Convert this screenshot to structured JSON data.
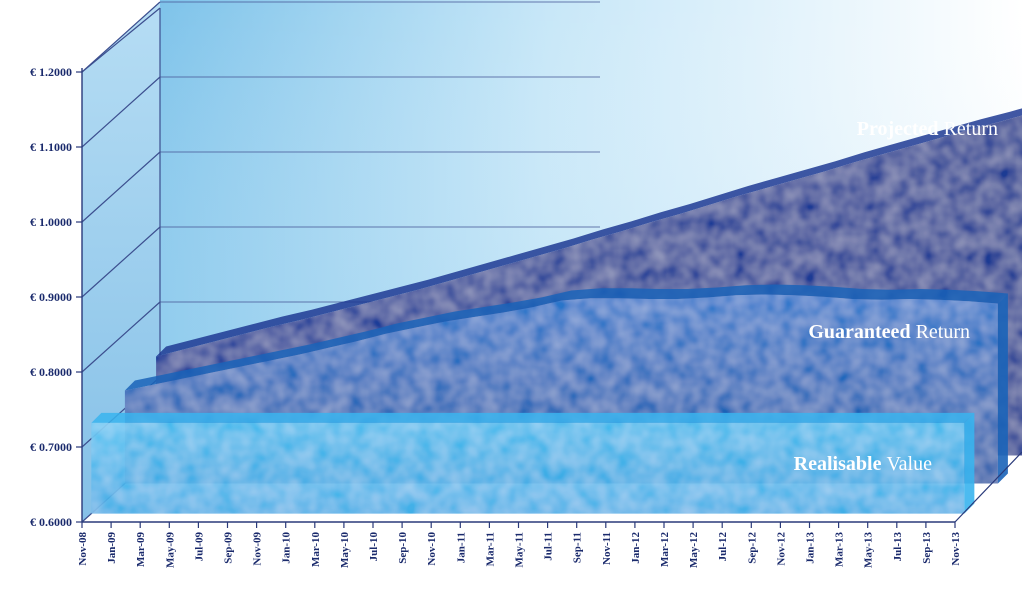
{
  "chart_data": {
    "type": "area",
    "yticks": [
      "€ 0.6000",
      "€ 0.7000",
      "€ 0.8000",
      "€ 0.9000",
      "€ 1.0000",
      "€ 1.1000",
      "€ 1.2000"
    ],
    "ylim": [
      0.6,
      1.2
    ],
    "x": [
      "Nov-08",
      "Jan-09",
      "Mar-09",
      "May-09",
      "Jul-09",
      "Sep-09",
      "Nov-09",
      "Jan-10",
      "Mar-10",
      "May-10",
      "Jul-10",
      "Sep-10",
      "Nov-10",
      "Jan-11",
      "Mar-11",
      "May-11",
      "Jul-11",
      "Sep-11",
      "Nov-11",
      "Jan-12",
      "Mar-12",
      "May-12",
      "Jul-12",
      "Sep-12",
      "Nov-12",
      "Jan-13",
      "Mar-13",
      "May-13",
      "Jul-13",
      "Sep-13",
      "Nov-13"
    ],
    "series": [
      {
        "name": "Projected Return",
        "label_bold": "Projected",
        "label_rest": " Return",
        "color": "#1f3a93",
        "values": [
          0.732,
          0.742,
          0.752,
          0.762,
          0.772,
          0.781,
          0.791,
          0.801,
          0.811,
          0.821,
          0.832,
          0.843,
          0.854,
          0.865,
          0.876,
          0.888,
          0.899,
          0.911,
          0.922,
          0.934,
          0.946,
          0.957,
          0.968,
          0.979,
          0.991,
          1.002,
          1.013,
          1.024,
          1.035,
          1.045,
          1.056
        ]
      },
      {
        "name": "Guaranteed Return",
        "label_bold": "Guaranteed",
        "label_rest": " Return",
        "color": "#1a63b8",
        "values": [
          0.724,
          0.732,
          0.74,
          0.748,
          0.756,
          0.764,
          0.772,
          0.781,
          0.79,
          0.8,
          0.808,
          0.816,
          0.822,
          0.828,
          0.835,
          0.844,
          0.847,
          0.847,
          0.846,
          0.846,
          0.848,
          0.851,
          0.852,
          0.851,
          0.849,
          0.846,
          0.845,
          0.846,
          0.845,
          0.843,
          0.84
        ]
      },
      {
        "name": "Realisable Value",
        "label_bold": "Realisable",
        "label_rest": " Value",
        "color": "#39b4ee",
        "values": [
          0.721,
          0.721,
          0.721,
          0.721,
          0.721,
          0.721,
          0.721,
          0.721,
          0.721,
          0.721,
          0.721,
          0.721,
          0.721,
          0.721,
          0.721,
          0.721,
          0.721,
          0.721,
          0.721,
          0.721,
          0.721,
          0.721,
          0.721,
          0.721,
          0.721,
          0.721,
          0.721,
          0.721,
          0.721,
          0.721,
          0.721
        ]
      }
    ],
    "grid": true
  }
}
